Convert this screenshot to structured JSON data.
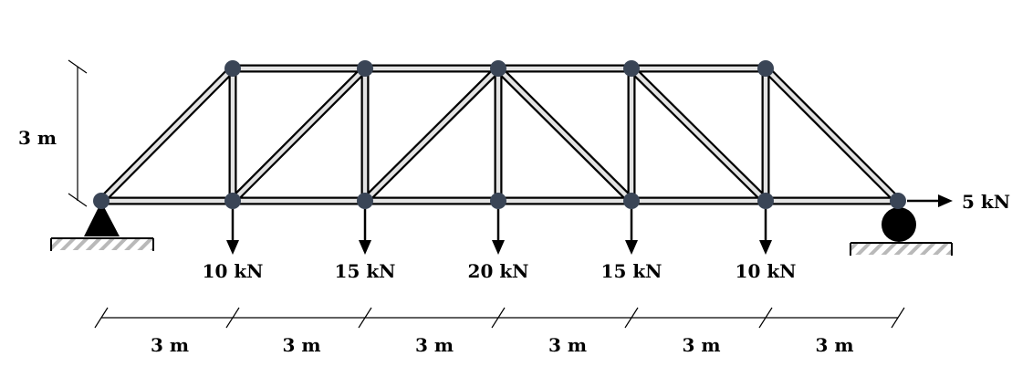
{
  "diagram": {
    "height_label": "3 m",
    "horizontal_load_label": "5 kN",
    "colors": {
      "member_outline": "#000000",
      "member_fill": "#e3e3e3",
      "joint": "#3a4556",
      "support": "#000000",
      "hatch": "#b9b9b9"
    },
    "vertical_loads": [
      {
        "label": "10 kN"
      },
      {
        "label": "15 kN"
      },
      {
        "label": "20 kN"
      },
      {
        "label": "15 kN"
      },
      {
        "label": "10 kN"
      }
    ],
    "spans": [
      {
        "label": "3 m"
      },
      {
        "label": "3 m"
      },
      {
        "label": "3 m"
      },
      {
        "label": "3 m"
      },
      {
        "label": "3 m"
      },
      {
        "label": "3 m"
      }
    ]
  }
}
